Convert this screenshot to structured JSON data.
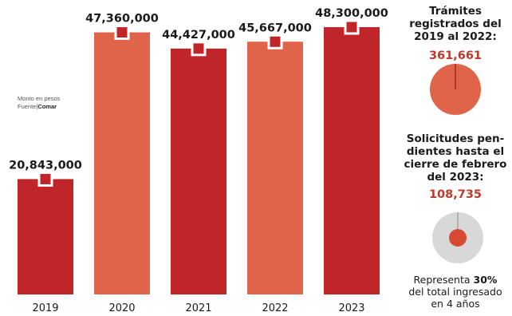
{
  "chart_data": {
    "type": "bar",
    "categories": [
      "2019",
      "2020",
      "2021",
      "2022",
      "2023"
    ],
    "values": [
      20843000,
      47360000,
      44427000,
      45667000,
      48300000
    ],
    "value_labels": [
      "20,843,000",
      "47,360,000",
      "44,427,000",
      "45,667,000",
      "48,300,000"
    ],
    "bar_colors": [
      "#c0252a",
      "#e0644a",
      "#c0252a",
      "#e0644a",
      "#c0252a"
    ],
    "ylim": [
      0,
      48300000
    ],
    "grid": false,
    "legend": "none"
  },
  "note": {
    "line1": "Monto en pesos",
    "source_prefix": "Fuente",
    "source_sep": "|",
    "source_name": "Comar"
  },
  "side_panel": {
    "block1": {
      "title_lines": [
        "Trámites",
        "registrados del",
        "2019 al 2022:"
      ],
      "value": "361,661",
      "circle_fraction": 1.0
    },
    "block2": {
      "title_lines": [
        "Solicitudes pen-",
        "dientes hasta el",
        "cierre de febrero",
        "del 2023:"
      ],
      "value": "108,735",
      "circle_fraction": 0.3
    },
    "footer": {
      "prefix": "Representa ",
      "percent": "30%",
      "line2": "del total ingresado",
      "line3": "en 4 años"
    }
  },
  "colors": {
    "bar_dark": "#c0252a",
    "bar_light": "#e0644a",
    "circle_fill": "#e0644a",
    "circle_small": "#d94a32",
    "circle_bg": "#d8d8d8",
    "accent_text": "#c0392b"
  },
  "icons": {
    "circle_1": "circle-icon",
    "circle_2": "concentric-circle-icon"
  }
}
